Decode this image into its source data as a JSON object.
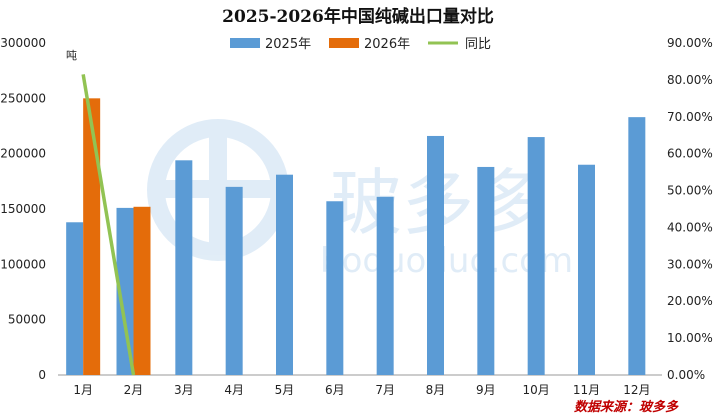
{
  "chart_data": {
    "type": "bar",
    "title": "2025-2026年中国纯碱出口量对比",
    "y_unit_label": "吨",
    "categories": [
      "1月",
      "2月",
      "3月",
      "4月",
      "5月",
      "6月",
      "7月",
      "8月",
      "9月",
      "10月",
      "11月",
      "12月"
    ],
    "series": [
      {
        "name": "2025年",
        "type": "bar",
        "color": "#5b9bd5",
        "values": [
          138000,
          151000,
          194000,
          170000,
          181000,
          157000,
          161000,
          216000,
          188000,
          215000,
          190000,
          233000
        ]
      },
      {
        "name": "2026年",
        "type": "bar",
        "color": "#e46c0a",
        "values": [
          250000,
          152000,
          null,
          null,
          null,
          null,
          null,
          null,
          null,
          null,
          null,
          null
        ]
      },
      {
        "name": "同比",
        "type": "line",
        "axis": "right",
        "color": "#92c353",
        "values": [
          0.815,
          0.0,
          null,
          null,
          null,
          null,
          null,
          null,
          null,
          null,
          null,
          null
        ]
      }
    ],
    "ylim_left": [
      0,
      300000
    ],
    "yticks_left": [
      "0",
      "50000",
      "100000",
      "150000",
      "200000",
      "250000",
      "300000"
    ],
    "ylim_right": [
      0,
      0.9
    ],
    "yticks_right": [
      "0.00%",
      "10.00%",
      "20.00%",
      "30.00%",
      "40.00%",
      "50.00%",
      "60.00%",
      "70.00%",
      "80.00%",
      "90.00%"
    ],
    "legend": "top",
    "grid": false
  },
  "source_text": "数据来源：玻多多",
  "watermark": {
    "brand": "玻多多",
    "url": "boduoduo.com"
  }
}
